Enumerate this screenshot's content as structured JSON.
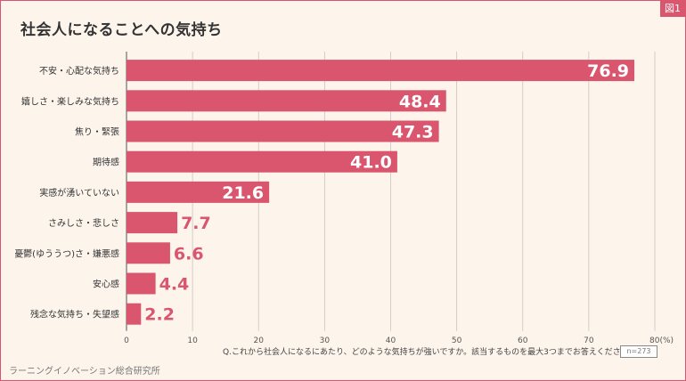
{
  "title": "社会人になることへの気持ち",
  "figure_label": "図1",
  "note": "Q.これから社会人になるにあたり、どのような気持ちが強いですか。該当するものを最大3つまでお答えください。",
  "sample": "n=273",
  "source": "ラーニングイノベーション総合研究所",
  "colors": {
    "bar": "#d9566e",
    "border": "#d9566e",
    "background": "#fdf4ec"
  },
  "chart_data": {
    "type": "bar",
    "orientation": "horizontal",
    "categories": [
      "不安・心配な気持ち",
      "嬉しさ・楽しみな気持ち",
      "焦り・緊張",
      "期待感",
      "実感が湧いていない",
      "さみしさ・悲しさ",
      "憂鬱(ゆううつ)さ・嫌悪感",
      "安心感",
      "残念な気持ち・失望感"
    ],
    "values": [
      76.9,
      48.4,
      47.3,
      41.0,
      21.6,
      7.7,
      6.6,
      4.4,
      2.2
    ],
    "value_labels": [
      "76.9",
      "48.4",
      "47.3",
      "41.0",
      "21.6",
      "7.7",
      "6.6",
      "4.4",
      "2.2"
    ],
    "xlim": [
      0,
      80
    ],
    "ticks": [
      "0",
      "10",
      "20",
      "30",
      "40",
      "50",
      "60",
      "70",
      "80(%)"
    ],
    "grid": true
  }
}
